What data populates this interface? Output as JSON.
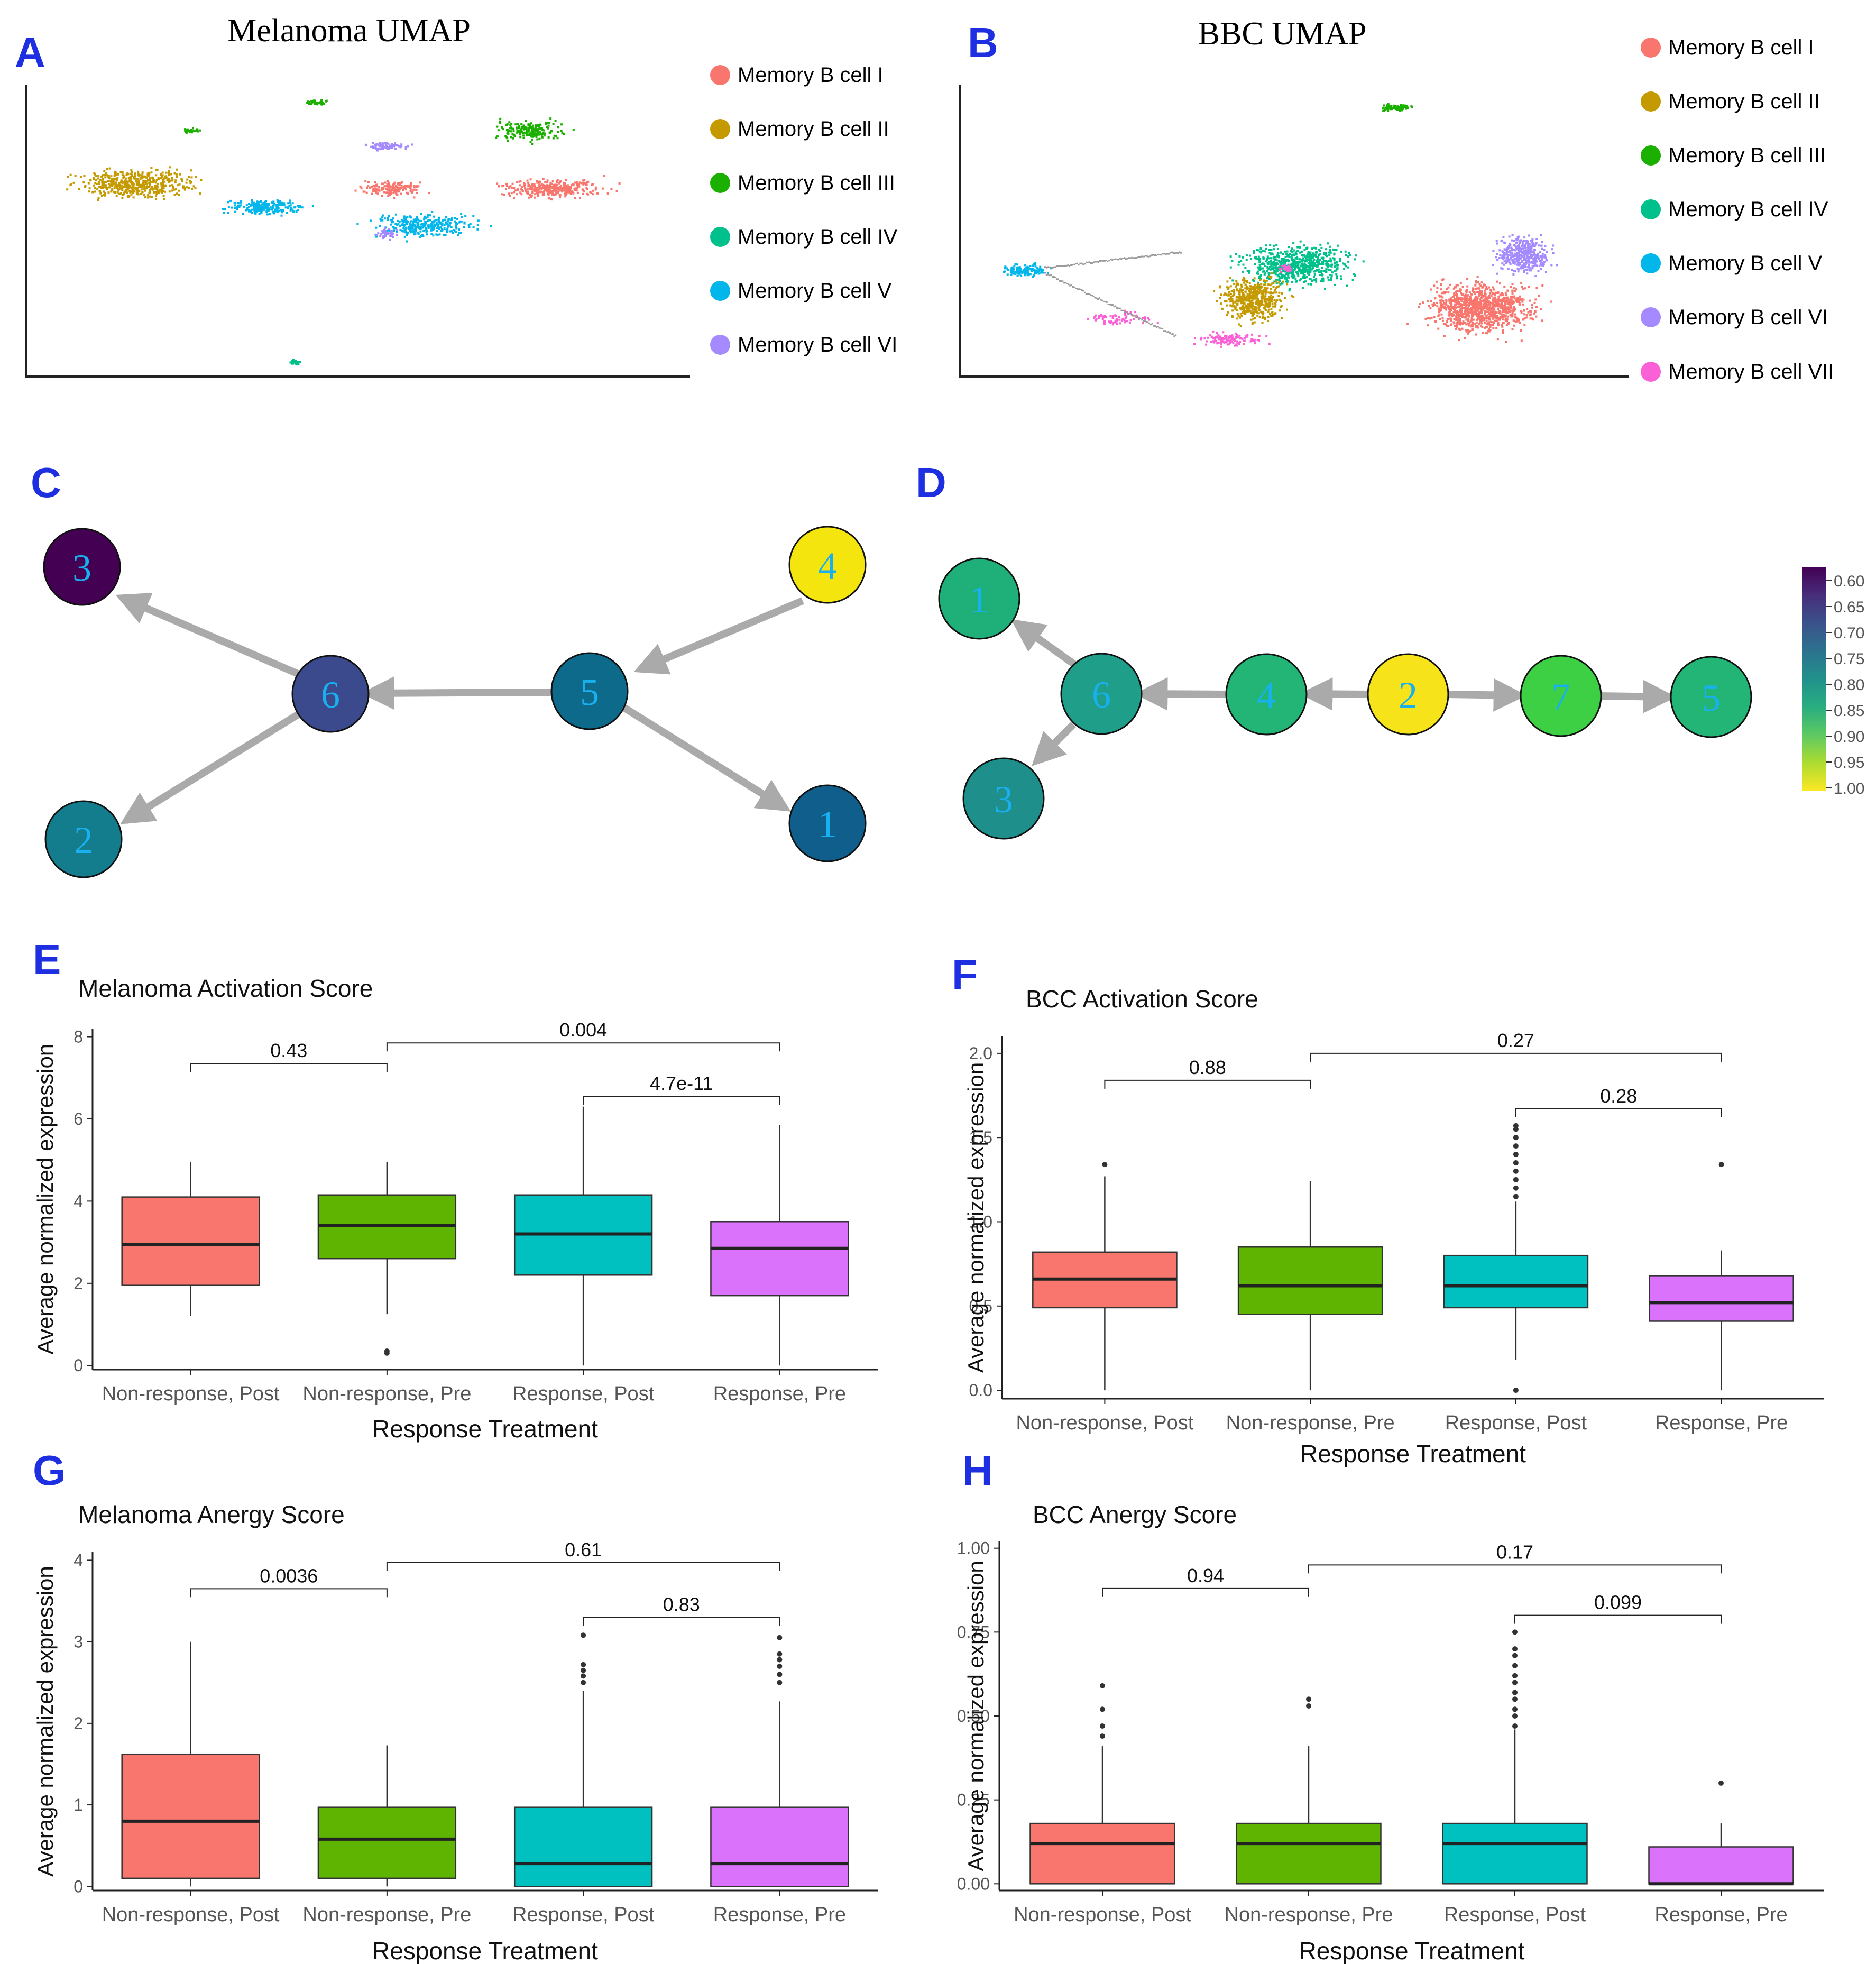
{
  "colors": {
    "panel_letter": "#1d2fe0",
    "mem_I": "#f8766d",
    "mem_II": "#c49a00",
    "mem_III": "#1bb000",
    "mem_IV": "#00c08b",
    "mem_V": "#00b6eb",
    "mem_VI": "#a58aff",
    "mem_VII": "#fb61d7",
    "box_nonpost": "#f8766d",
    "box_nonpre": "#5eb400",
    "box_respost": "#00c0c0",
    "box_respre": "#db72fb",
    "arrow": "#aaaaaa",
    "node_text": "#19b0f0"
  },
  "panels": {
    "A": {
      "letter": "A",
      "title": "Melanoma UMAP",
      "legend": [
        "Memory B cell I",
        "Memory B cell II",
        "Memory B cell III",
        "Memory B cell IV",
        "Memory B cell V",
        "Memory B cell VI"
      ]
    },
    "B": {
      "letter": "B",
      "title": "BBC UMAP",
      "legend": [
        "Memory B cell I",
        "Memory B cell II",
        "Memory B cell III",
        "Memory B cell IV",
        "Memory B cell V",
        "Memory B cell VI",
        "Memory B cell VII"
      ]
    },
    "C": {
      "letter": "C"
    },
    "D": {
      "letter": "D"
    },
    "E": {
      "letter": "E"
    },
    "F": {
      "letter": "F"
    },
    "G": {
      "letter": "G"
    },
    "H": {
      "letter": "H"
    }
  },
  "graph_C": {
    "nodes": [
      {
        "id": "3",
        "score": 0.6,
        "color": "#440154"
      },
      {
        "id": "6",
        "score": 0.67,
        "color": "#3a4a8c"
      },
      {
        "id": "5",
        "score": 0.74,
        "color": "#0d6a8a"
      },
      {
        "id": "4",
        "score": 1.0,
        "color": "#f5e50f"
      },
      {
        "id": "2",
        "score": 0.75,
        "color": "#137d8d"
      },
      {
        "id": "1",
        "score": 0.73,
        "color": "#0f5e8c"
      }
    ],
    "edges": [
      [
        "4",
        "5"
      ],
      [
        "5",
        "6"
      ],
      [
        "6",
        "3"
      ],
      [
        "6",
        "2"
      ],
      [
        "5",
        "1"
      ]
    ]
  },
  "graph_D": {
    "nodes": [
      {
        "id": "1",
        "score": 0.85,
        "color": "#1fb07a"
      },
      {
        "id": "6",
        "score": 0.8,
        "color": "#1f9e89"
      },
      {
        "id": "3",
        "score": 0.78,
        "color": "#1e8f8a"
      },
      {
        "id": "4",
        "score": 0.86,
        "color": "#22b576"
      },
      {
        "id": "2",
        "score": 1.0,
        "color": "#f7e31a"
      },
      {
        "id": "7",
        "score": 0.9,
        "color": "#3ed044"
      },
      {
        "id": "5",
        "score": 0.86,
        "color": "#22b576"
      }
    ],
    "edges": [
      [
        "6",
        "1"
      ],
      [
        "6",
        "3"
      ],
      [
        "4",
        "6"
      ],
      [
        "2",
        "4"
      ],
      [
        "2",
        "7"
      ],
      [
        "7",
        "5"
      ]
    ]
  },
  "colorbar": {
    "ticks": [
      "0.60",
      "0.65",
      "0.70",
      "0.75",
      "0.80",
      "0.85",
      "0.90",
      "0.95",
      "1.00"
    ],
    "stops": [
      "#440154",
      "#472d7b",
      "#3b528b",
      "#2c728e",
      "#21918c",
      "#28ae80",
      "#5ec962",
      "#addc30",
      "#fde725"
    ]
  },
  "chart_data": [
    {
      "type": "box",
      "panel": "E",
      "title": "Melanoma Activation Score",
      "xlabel": "Response Treatment",
      "ylabel": "Average normalized expression",
      "categories": [
        "Non-response, Post",
        "Non-response, Pre",
        "Response, Post",
        "Response, Pre"
      ],
      "ylim": [
        -0.1,
        8.2
      ],
      "yticks": [
        0,
        2,
        4,
        6,
        8
      ],
      "boxes": [
        {
          "q1": 1.95,
          "median": 2.95,
          "q3": 4.1,
          "lower": 1.2,
          "upper": 4.95,
          "outliers": []
        },
        {
          "q1": 2.6,
          "median": 3.4,
          "q3": 4.15,
          "lower": 1.25,
          "upper": 4.95,
          "outliers": [
            0.3,
            0.35
          ]
        },
        {
          "q1": 2.2,
          "median": 3.2,
          "q3": 4.15,
          "lower": 0.0,
          "upper": 6.3,
          "outliers": []
        },
        {
          "q1": 1.7,
          "median": 2.85,
          "q3": 3.5,
          "lower": 0.0,
          "upper": 5.85,
          "outliers": []
        }
      ],
      "comparisons": [
        {
          "from": 0,
          "to": 1,
          "label": "0.43",
          "level": 7.35
        },
        {
          "from": 1,
          "to": 3,
          "label": "0.004",
          "level": 7.85
        },
        {
          "from": 2,
          "to": 3,
          "label": "4.7e-11",
          "level": 6.55
        }
      ]
    },
    {
      "type": "box",
      "panel": "F",
      "title": "BCC Activation Score",
      "xlabel": "Response Treatment",
      "ylabel": "Average normalized expression",
      "categories": [
        "Non-response, Post",
        "Non-response, Pre",
        "Response, Post",
        "Response, Pre"
      ],
      "ylim": [
        -0.05,
        2.1
      ],
      "yticks": [
        0.0,
        0.5,
        1.0,
        1.5,
        2.0
      ],
      "tickfmt": 1,
      "boxes": [
        {
          "q1": 0.49,
          "median": 0.66,
          "q3": 0.82,
          "lower": 0.0,
          "upper": 1.27,
          "outliers": [
            1.34
          ]
        },
        {
          "q1": 0.45,
          "median": 0.62,
          "q3": 0.85,
          "lower": 0.0,
          "upper": 1.24,
          "outliers": []
        },
        {
          "q1": 0.49,
          "median": 0.62,
          "q3": 0.8,
          "lower": 0.18,
          "upper": 1.12,
          "outliers": [
            0.0,
            1.15,
            1.2,
            1.25,
            1.3,
            1.35,
            1.4,
            1.45,
            1.5,
            1.55,
            1.57
          ]
        },
        {
          "q1": 0.41,
          "median": 0.52,
          "q3": 0.68,
          "lower": 0.0,
          "upper": 0.83,
          "outliers": [
            1.34
          ]
        }
      ],
      "comparisons": [
        {
          "from": 0,
          "to": 1,
          "label": "0.88",
          "level": 1.84
        },
        {
          "from": 1,
          "to": 3,
          "label": "0.27",
          "level": 2.0
        },
        {
          "from": 2,
          "to": 3,
          "label": "0.28",
          "level": 1.67
        }
      ]
    },
    {
      "type": "box",
      "panel": "G",
      "title": "Melanoma Anergy Score",
      "xlabel": "Response Treatment",
      "ylabel": "Average normalized expression",
      "categories": [
        "Non-response, Post",
        "Non-response, Pre",
        "Response, Post",
        "Response, Pre"
      ],
      "ylim": [
        -0.05,
        4.1
      ],
      "yticks": [
        0,
        1,
        2,
        3,
        4
      ],
      "boxes": [
        {
          "q1": 0.1,
          "median": 0.8,
          "q3": 1.62,
          "lower": 0.0,
          "upper": 3.0,
          "outliers": []
        },
        {
          "q1": 0.1,
          "median": 0.58,
          "q3": 0.97,
          "lower": 0.0,
          "upper": 1.73,
          "outliers": []
        },
        {
          "q1": 0.0,
          "median": 0.28,
          "q3": 0.97,
          "lower": 0.0,
          "upper": 2.4,
          "outliers": [
            2.5,
            2.58,
            2.65,
            2.72,
            3.08
          ]
        },
        {
          "q1": 0.0,
          "median": 0.28,
          "q3": 0.97,
          "lower": 0.0,
          "upper": 2.27,
          "outliers": [
            2.5,
            2.6,
            2.7,
            2.78,
            2.85,
            3.05
          ]
        }
      ],
      "comparisons": [
        {
          "from": 0,
          "to": 1,
          "label": "0.0036",
          "level": 3.65
        },
        {
          "from": 1,
          "to": 3,
          "label": "0.61",
          "level": 3.97
        },
        {
          "from": 2,
          "to": 3,
          "label": "0.83",
          "level": 3.3
        }
      ]
    },
    {
      "type": "box",
      "panel": "H",
      "title": "BCC Anergy Score",
      "xlabel": "Response Treatment",
      "ylabel": "Average normalized expression",
      "categories": [
        "Non-response, Post",
        "Non-response, Pre",
        "Response, Post",
        "Response, Pre"
      ],
      "ylim": [
        -0.02,
        1.02
      ],
      "yticks": [
        0.0,
        0.25,
        0.5,
        0.75,
        1.0
      ],
      "tickfmt": 2,
      "boxes": [
        {
          "q1": 0.0,
          "median": 0.12,
          "q3": 0.18,
          "lower": 0.0,
          "upper": 0.41,
          "outliers": [
            0.44,
            0.47,
            0.52,
            0.59
          ]
        },
        {
          "q1": 0.0,
          "median": 0.12,
          "q3": 0.18,
          "lower": 0.0,
          "upper": 0.41,
          "outliers": [
            0.53,
            0.55
          ]
        },
        {
          "q1": 0.0,
          "median": 0.12,
          "q3": 0.18,
          "lower": 0.0,
          "upper": 0.46,
          "outliers": [
            0.47,
            0.5,
            0.52,
            0.55,
            0.57,
            0.6,
            0.62,
            0.65,
            0.68,
            0.7,
            0.75
          ]
        },
        {
          "q1": 0.0,
          "median": 0.0,
          "q3": 0.11,
          "lower": 0.0,
          "upper": 0.18,
          "outliers": [
            0.3
          ]
        }
      ],
      "comparisons": [
        {
          "from": 0,
          "to": 1,
          "label": "0.94",
          "level": 0.88
        },
        {
          "from": 1,
          "to": 3,
          "label": "0.17",
          "level": 0.95
        },
        {
          "from": 2,
          "to": 3,
          "label": "0.099",
          "level": 0.8
        }
      ]
    }
  ]
}
